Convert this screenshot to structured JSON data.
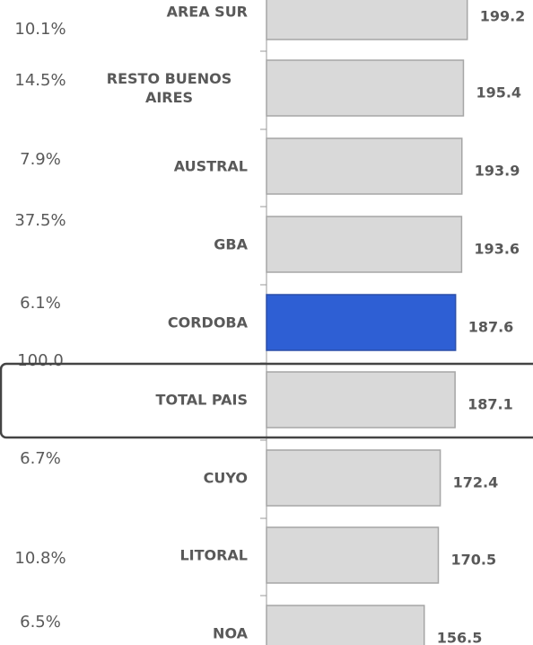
{
  "chart_data": {
    "type": "bar",
    "orientation": "horizontal",
    "categories": [
      "AREA SUR",
      "RESTO BUENOS AIRES",
      "AUSTRAL",
      "GBA",
      "CORDOBA",
      "TOTAL PAIS",
      "CUYO",
      "LITORAL",
      "NOA"
    ],
    "values": [
      199.2,
      195.4,
      193.9,
      193.6,
      187.6,
      187.1,
      172.4,
      170.5,
      156.5
    ],
    "colors": [
      "#d9d9d9",
      "#d9d9d9",
      "#d9d9d9",
      "#d9d9d9",
      "#2e5fd4",
      "#d9d9d9",
      "#d9d9d9",
      "#d9d9d9",
      "#d9d9d9"
    ],
    "shares": [
      {
        "value": 10.1,
        "label": "10.1%"
      },
      {
        "value": 14.5,
        "label": "14.5%"
      },
      {
        "value": 7.9,
        "label": "7.9%"
      },
      {
        "value": 37.5,
        "label": "37.5%"
      },
      {
        "value": 6.1,
        "label": "6.1%"
      },
      {
        "value": 100.0,
        "label": "100.0"
      },
      {
        "value": 6.7,
        "label": "6.7%"
      },
      {
        "value": 10.8,
        "label": "10.8%"
      },
      {
        "value": 6.5,
        "label": "6.5%"
      }
    ],
    "xlim": [
      0,
      260
    ]
  }
}
